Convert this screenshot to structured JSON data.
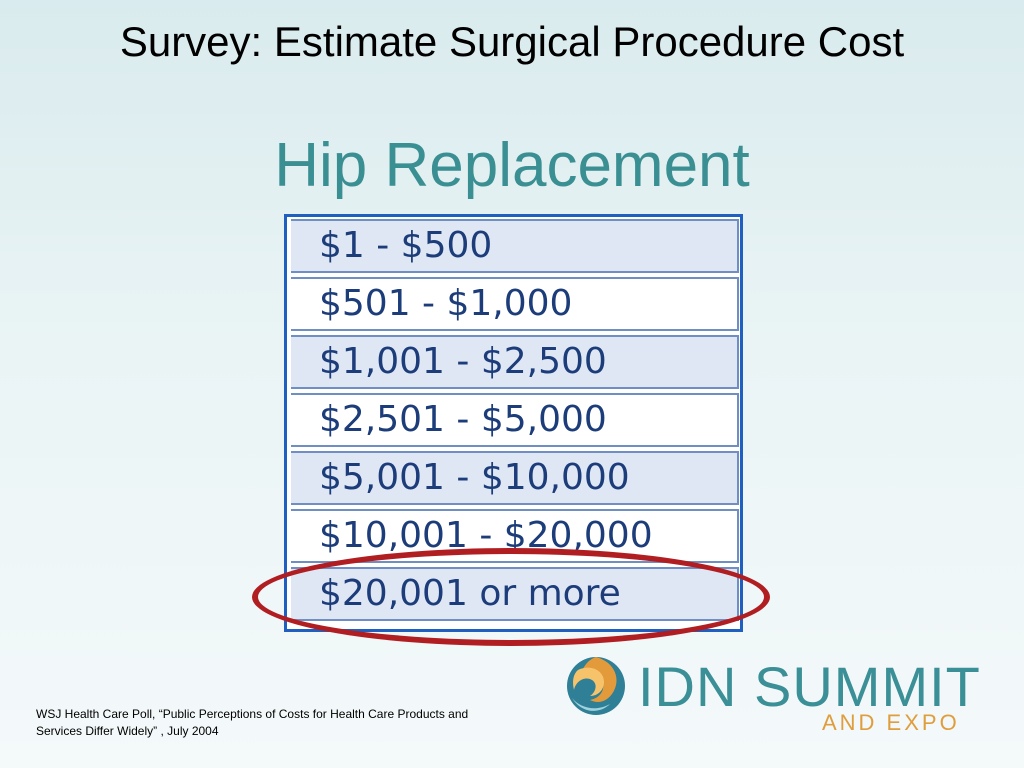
{
  "slide": {
    "title": "Survey: Estimate Surgical Procedure Cost",
    "subtitle": "Hip  Replacement"
  },
  "cost_options": [
    "$1 - $500",
    "$501 - $1,000",
    "$1,001 - $2,500",
    "$2,501 - $5,000",
    "$5,001 - $10,000",
    "$10,001 - $20,000",
    "$20,001 or more"
  ],
  "highlighted_option": "$20,001 or more",
  "source_citation": "WSJ Health Care Poll, “Public Perceptions of Costs for Health Care Products and Services Differ Widely” , July 2004",
  "logo": {
    "name": "IDN SUMMIT",
    "tagline": "AND EXPO",
    "icon": "swirl-logo-icon"
  },
  "colors": {
    "title": "#000000",
    "subtitle": "#3a8f93",
    "table_border": "#1f5fbf",
    "option_text": "#1c3d7a",
    "row_shade": "#dfe7f5",
    "highlight_ring": "#b01e22",
    "logo_teal": "#3b8f96",
    "logo_orange": "#e09d3c"
  }
}
